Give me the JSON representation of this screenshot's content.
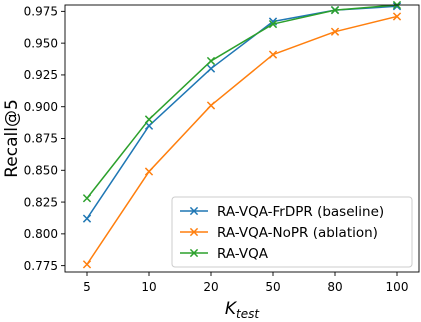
{
  "chart_data": {
    "type": "line",
    "x_is_categorical": true,
    "categories": [
      "5",
      "10",
      "20",
      "50",
      "80",
      "100"
    ],
    "xlabel": {
      "main": "K",
      "subscript": "test"
    },
    "ylabel": "Recall@5",
    "ylim": [
      0.77,
      0.98
    ],
    "yticks": [
      0.775,
      0.8,
      0.825,
      0.85,
      0.875,
      0.9,
      0.925,
      0.95,
      0.975
    ],
    "ytick_labels": [
      "0.775",
      "0.800",
      "0.825",
      "0.850",
      "0.875",
      "0.900",
      "0.925",
      "0.950",
      "0.975"
    ],
    "grid": false,
    "legend_position": "bottom-right",
    "marker": "x",
    "series": [
      {
        "name": "RA-VQA-FrDPR (baseline)",
        "color": "#1f77b4",
        "values": [
          0.812,
          0.885,
          0.93,
          0.967,
          0.976,
          0.979
        ]
      },
      {
        "name": "RA-VQA-NoPR (ablation)",
        "color": "#ff7f0e",
        "values": [
          0.776,
          0.849,
          0.901,
          0.941,
          0.959,
          0.971
        ]
      },
      {
        "name": "RA-VQA",
        "color": "#2ca02c",
        "values": [
          0.828,
          0.89,
          0.936,
          0.965,
          0.976,
          0.98
        ]
      }
    ]
  }
}
